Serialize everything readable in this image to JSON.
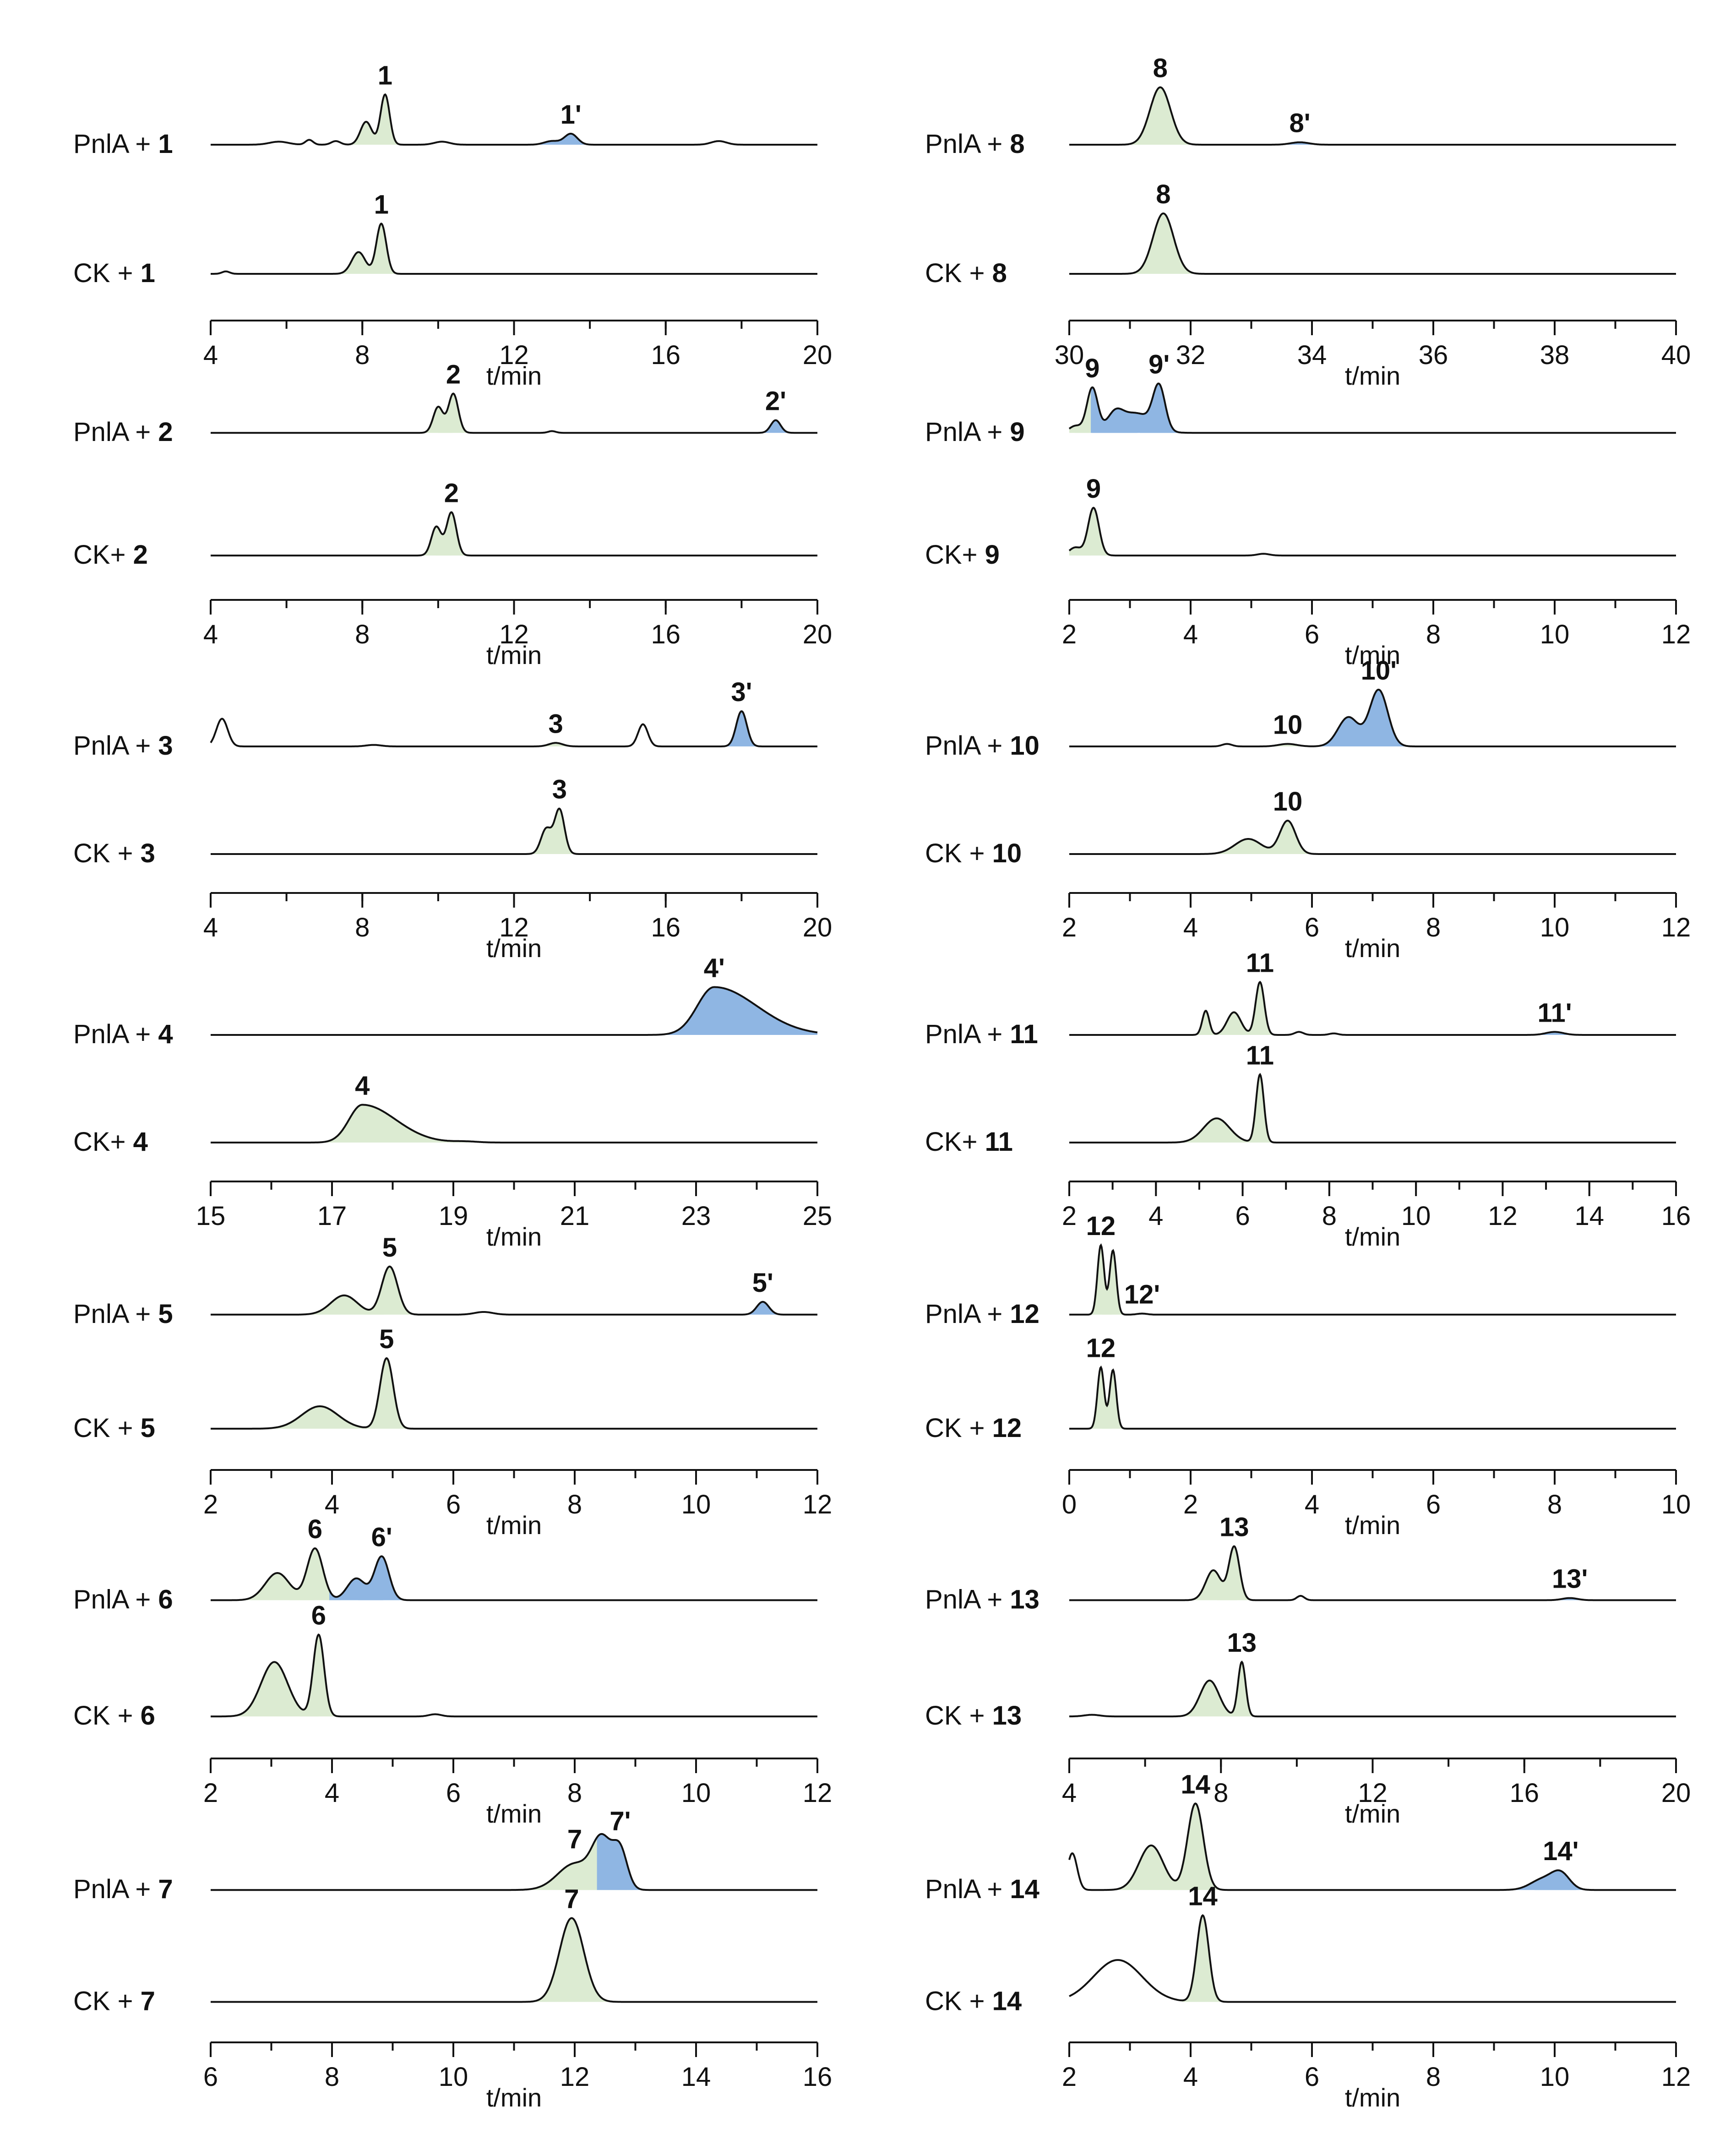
{
  "figure": {
    "title": "",
    "colors": {
      "trace": "#111111",
      "substrate_fill": "#dcebd2",
      "product_fill": "#8fb6e3",
      "axis": "#111111",
      "background": "#ffffff"
    }
  },
  "chart_data": [
    {
      "type": "line",
      "id": "p1",
      "xlabel": "t/min",
      "xlim": [
        4,
        20
      ],
      "ticks": [
        4,
        8,
        12,
        16,
        20
      ],
      "traces": [
        {
          "label_prefix": "PnlA + ",
          "label_bold": "1",
          "peaks": [
            {
              "t": 8.1,
              "h": 0.38,
              "w": 0.15,
              "fill": "substrate"
            },
            {
              "t": 8.6,
              "h": 0.83,
              "w": 0.12,
              "fill": "substrate",
              "label": "1"
            },
            {
              "t": 13.5,
              "h": 0.18,
              "w": 0.17,
              "fill": "product",
              "label": "1'"
            },
            {
              "t": 13.0,
              "h": 0.06,
              "w": 0.2,
              "fill": "product"
            },
            {
              "t": 5.8,
              "h": 0.05,
              "w": 0.25
            },
            {
              "t": 6.6,
              "h": 0.08,
              "w": 0.1
            },
            {
              "t": 7.3,
              "h": 0.06,
              "w": 0.12
            },
            {
              "t": 10.1,
              "h": 0.05,
              "w": 0.2
            },
            {
              "t": 17.4,
              "h": 0.06,
              "w": 0.2
            }
          ]
        },
        {
          "label_prefix": "CK + ",
          "label_bold": "1",
          "peaks": [
            {
              "t": 4.4,
              "h": 0.04,
              "w": 0.1
            },
            {
              "t": 7.9,
              "h": 0.36,
              "w": 0.18,
              "fill": "substrate"
            },
            {
              "t": 8.5,
              "h": 0.83,
              "w": 0.13,
              "fill": "substrate",
              "label": "1"
            }
          ]
        }
      ]
    },
    {
      "type": "line",
      "id": "p8",
      "xlabel": "t/min",
      "xlim": [
        30,
        40
      ],
      "ticks": [
        30,
        32,
        34,
        36,
        38,
        40
      ],
      "traces": [
        {
          "label_prefix": "PnlA + ",
          "label_bold": "8",
          "peaks": [
            {
              "t": 31.5,
              "h": 0.95,
              "w": 0.17,
              "fill": "substrate",
              "label": "8"
            },
            {
              "t": 33.8,
              "h": 0.04,
              "w": 0.15,
              "fill": "product",
              "label": "8'"
            }
          ]
        },
        {
          "label_prefix": "CK + ",
          "label_bold": "8",
          "peaks": [
            {
              "t": 31.55,
              "h": 1.0,
              "w": 0.17,
              "fill": "substrate",
              "label": "8"
            }
          ]
        }
      ]
    },
    {
      "type": "line",
      "id": "p2",
      "xlabel": "t/min",
      "xlim": [
        4,
        20
      ],
      "ticks": [
        4,
        8,
        12,
        16,
        20
      ],
      "traces": [
        {
          "label_prefix": "PnlA + ",
          "label_bold": "2",
          "peaks": [
            {
              "t": 10.0,
              "h": 0.45,
              "w": 0.13,
              "fill": "substrate"
            },
            {
              "t": 10.4,
              "h": 0.68,
              "w": 0.13,
              "fill": "substrate",
              "label": "2"
            },
            {
              "t": 13.0,
              "h": 0.03,
              "w": 0.1
            },
            {
              "t": 18.9,
              "h": 0.22,
              "w": 0.13,
              "fill": "product",
              "label": "2'"
            }
          ]
        },
        {
          "label_prefix": "CK+ ",
          "label_bold": "2",
          "peaks": [
            {
              "t": 9.95,
              "h": 0.5,
              "w": 0.13,
              "fill": "substrate"
            },
            {
              "t": 10.35,
              "h": 0.75,
              "w": 0.13,
              "fill": "substrate",
              "label": "2"
            }
          ]
        }
      ]
    },
    {
      "type": "line",
      "id": "p9",
      "xlabel": "t/min",
      "xlim": [
        2,
        12
      ],
      "ticks": [
        2,
        4,
        6,
        8,
        10,
        12
      ],
      "traces": [
        {
          "label_prefix": "PnlA + ",
          "label_bold": "9",
          "peaks": [
            {
              "t": 2.38,
              "h": 0.78,
              "w": 0.09,
              "fill": "substrate",
              "label": "9"
            },
            {
              "t": 2.1,
              "h": 0.12,
              "w": 0.1,
              "fill": "substrate"
            },
            {
              "t": 2.75,
              "h": 0.28,
              "w": 0.13,
              "fill": "product"
            },
            {
              "t": 3.1,
              "h": 0.34,
              "w": 0.25,
              "fill": "product"
            },
            {
              "t": 3.48,
              "h": 0.75,
              "w": 0.1,
              "fill": "product",
              "label": "9'"
            }
          ]
        },
        {
          "label_prefix": "CK+ ",
          "label_bold": "9",
          "peaks": [
            {
              "t": 2.4,
              "h": 0.83,
              "w": 0.09,
              "fill": "substrate",
              "label": "9"
            },
            {
              "t": 2.1,
              "h": 0.14,
              "w": 0.1,
              "fill": "substrate"
            },
            {
              "t": 5.2,
              "h": 0.03,
              "w": 0.1
            }
          ]
        }
      ]
    },
    {
      "type": "line",
      "id": "p3",
      "xlabel": "t/min",
      "xlim": [
        4,
        20
      ],
      "ticks": [
        4,
        8,
        12,
        16,
        20
      ],
      "traces": [
        {
          "label_prefix": "PnlA + ",
          "label_bold": "3",
          "peaks": [
            {
              "t": 4.3,
              "h": 0.55,
              "w": 0.15
            },
            {
              "t": 8.3,
              "h": 0.03,
              "w": 0.2
            },
            {
              "t": 13.1,
              "h": 0.07,
              "w": 0.18,
              "fill": "substrate",
              "label": "3"
            },
            {
              "t": 15.4,
              "h": 0.44,
              "w": 0.13
            },
            {
              "t": 18.0,
              "h": 0.7,
              "w": 0.14,
              "fill": "product",
              "label": "3'"
            }
          ]
        },
        {
          "label_prefix": "CK + ",
          "label_bold": "3",
          "peaks": [
            {
              "t": 12.85,
              "h": 0.5,
              "w": 0.14,
              "fill": "substrate"
            },
            {
              "t": 13.2,
              "h": 0.88,
              "w": 0.13,
              "fill": "substrate",
              "label": "3"
            }
          ]
        }
      ]
    },
    {
      "type": "line",
      "id": "p10",
      "xlabel": "t/min",
      "xlim": [
        2,
        12
      ],
      "ticks": [
        2,
        4,
        6,
        8,
        10,
        12
      ],
      "traces": [
        {
          "label_prefix": "PnlA + ",
          "label_bold": "10",
          "peaks": [
            {
              "t": 4.6,
              "h": 0.05,
              "w": 0.08
            },
            {
              "t": 5.6,
              "h": 0.05,
              "w": 0.15,
              "fill": "substrate",
              "label": "10"
            },
            {
              "t": 6.6,
              "h": 0.58,
              "w": 0.17,
              "fill": "product"
            },
            {
              "t": 7.1,
              "h": 1.12,
              "w": 0.15,
              "fill": "product",
              "label": "10'"
            }
          ]
        },
        {
          "label_prefix": "CK + ",
          "label_bold": "10",
          "peaks": [
            {
              "t": 4.95,
              "h": 0.3,
              "w": 0.22,
              "fill": "substrate"
            },
            {
              "t": 5.6,
              "h": 0.66,
              "w": 0.13,
              "fill": "substrate",
              "label": "10"
            }
          ]
        }
      ]
    },
    {
      "type": "line",
      "id": "p4",
      "xlabel": "t/min",
      "xlim": [
        15,
        25
      ],
      "ticks": [
        15,
        17,
        19,
        21,
        23,
        25
      ],
      "traces": [
        {
          "label_prefix": "PnlA + ",
          "label_bold": "4",
          "peaks": [
            {
              "t": 23.3,
              "h": 0.95,
              "w": 0.28,
              "tail": 0.7,
              "fill": "product",
              "label": "4'"
            }
          ]
        },
        {
          "label_prefix": "CK+ ",
          "label_bold": "4",
          "peaks": [
            {
              "t": 17.5,
              "h": 0.75,
              "w": 0.22,
              "tail": 0.55,
              "fill": "substrate",
              "label": "4"
            },
            {
              "t": 19.2,
              "h": 0.02,
              "w": 0.2
            }
          ]
        }
      ]
    },
    {
      "type": "line",
      "id": "p11",
      "xlabel": "t/min",
      "xlim": [
        2,
        16
      ],
      "ticks": [
        2,
        4,
        6,
        8,
        10,
        12,
        14,
        16
      ],
      "traces": [
        {
          "label_prefix": "PnlA + ",
          "label_bold": "11",
          "peaks": [
            {
              "t": 5.15,
              "h": 0.48,
              "w": 0.08,
              "fill": "substrate"
            },
            {
              "t": 5.8,
              "h": 0.45,
              "w": 0.16,
              "fill": "substrate"
            },
            {
              "t": 6.4,
              "h": 1.05,
              "w": 0.1,
              "fill": "substrate",
              "label": "11"
            },
            {
              "t": 7.3,
              "h": 0.06,
              "w": 0.1
            },
            {
              "t": 8.1,
              "h": 0.03,
              "w": 0.1
            },
            {
              "t": 13.2,
              "h": 0.06,
              "w": 0.2,
              "fill": "product",
              "label": "11'"
            }
          ]
        },
        {
          "label_prefix": "CK+ ",
          "label_bold": "11",
          "peaks": [
            {
              "t": 5.4,
              "h": 0.48,
              "w": 0.3,
              "fill": "substrate"
            },
            {
              "t": 6.4,
              "h": 1.35,
              "w": 0.09,
              "fill": "substrate",
              "label": "11"
            }
          ]
        }
      ]
    },
    {
      "type": "line",
      "id": "p5",
      "xlabel": "t/min",
      "xlim": [
        2,
        12
      ],
      "ticks": [
        2,
        4,
        6,
        8,
        10,
        12
      ],
      "traces": [
        {
          "label_prefix": "PnlA + ",
          "label_bold": "5",
          "peaks": [
            {
              "t": 4.2,
              "h": 0.36,
              "w": 0.22,
              "fill": "substrate"
            },
            {
              "t": 4.95,
              "h": 0.9,
              "w": 0.13,
              "fill": "substrate",
              "label": "5"
            },
            {
              "t": 6.5,
              "h": 0.05,
              "w": 0.15
            },
            {
              "t": 11.1,
              "h": 0.24,
              "w": 0.1,
              "fill": "product",
              "label": "5'"
            }
          ]
        },
        {
          "label_prefix": "CK + ",
          "label_bold": "5",
          "peaks": [
            {
              "t": 3.8,
              "h": 0.42,
              "w": 0.3,
              "fill": "substrate"
            },
            {
              "t": 4.9,
              "h": 1.32,
              "w": 0.11,
              "fill": "substrate",
              "label": "5"
            }
          ]
        }
      ]
    },
    {
      "type": "line",
      "id": "p12",
      "xlabel": "t/min",
      "xlim": [
        0,
        10
      ],
      "ticks": [
        0,
        2,
        4,
        6,
        8,
        10
      ],
      "traces": [
        {
          "label_prefix": "PnlA + ",
          "label_bold": "12",
          "peaks": [
            {
              "t": 0.52,
              "h": 1.3,
              "w": 0.055,
              "fill": "substrate",
              "label": "12"
            },
            {
              "t": 0.72,
              "h": 1.2,
              "w": 0.055,
              "fill": "substrate"
            },
            {
              "t": 1.2,
              "h": 0.02,
              "w": 0.08,
              "fill": "product",
              "label": "12'"
            }
          ]
        },
        {
          "label_prefix": "CK + ",
          "label_bold": "12",
          "peaks": [
            {
              "t": 0.52,
              "h": 1.15,
              "w": 0.055,
              "fill": "substrate",
              "label": "12"
            },
            {
              "t": 0.72,
              "h": 1.1,
              "w": 0.055,
              "fill": "substrate"
            }
          ]
        }
      ]
    },
    {
      "type": "line",
      "id": "p6",
      "xlabel": "t/min",
      "xlim": [
        2,
        12
      ],
      "ticks": [
        2,
        4,
        6,
        8,
        10,
        12
      ],
      "traces": [
        {
          "label_prefix": "PnlA + ",
          "label_bold": "6",
          "peaks": [
            {
              "t": 3.1,
              "h": 0.5,
              "w": 0.2,
              "fill": "substrate"
            },
            {
              "t": 3.72,
              "h": 0.95,
              "w": 0.13,
              "fill": "substrate",
              "label": "6"
            },
            {
              "t": 4.4,
              "h": 0.4,
              "w": 0.15,
              "fill": "product"
            },
            {
              "t": 4.82,
              "h": 0.8,
              "w": 0.12,
              "fill": "product",
              "label": "6'"
            }
          ]
        },
        {
          "label_prefix": "CK + ",
          "label_bold": "6",
          "peaks": [
            {
              "t": 3.05,
              "h": 1.0,
              "w": 0.22,
              "fill": "substrate"
            },
            {
              "t": 3.78,
              "h": 1.5,
              "w": 0.09,
              "fill": "substrate",
              "label": "6"
            },
            {
              "t": 5.7,
              "h": 0.04,
              "w": 0.1
            }
          ]
        }
      ]
    },
    {
      "type": "line",
      "id": "p13",
      "xlabel": "t/min",
      "xlim": [
        4,
        20
      ],
      "ticks": [
        4,
        8,
        12,
        16,
        20
      ],
      "traces": [
        {
          "label_prefix": "PnlA + ",
          "label_bold": "13",
          "peaks": [
            {
              "t": 7.8,
              "h": 0.55,
              "w": 0.2,
              "fill": "substrate"
            },
            {
              "t": 8.35,
              "h": 0.98,
              "w": 0.14,
              "fill": "substrate",
              "label": "13"
            },
            {
              "t": 10.1,
              "h": 0.08,
              "w": 0.1
            },
            {
              "t": 17.2,
              "h": 0.04,
              "w": 0.2,
              "fill": "product",
              "label": "13'"
            }
          ]
        },
        {
          "label_prefix": "CK + ",
          "label_bold": "13",
          "peaks": [
            {
              "t": 4.6,
              "h": 0.03,
              "w": 0.2
            },
            {
              "t": 7.7,
              "h": 0.66,
              "w": 0.25,
              "fill": "substrate"
            },
            {
              "t": 8.55,
              "h": 1.0,
              "w": 0.1,
              "fill": "substrate",
              "label": "13"
            }
          ]
        }
      ]
    },
    {
      "type": "line",
      "id": "p7",
      "xlabel": "t/min",
      "xlim": [
        6,
        16
      ],
      "ticks": [
        6,
        8,
        10,
        12,
        14,
        16
      ],
      "traces": [
        {
          "label_prefix": "PnlA + ",
          "label_bold": "7",
          "peaks": [
            {
              "t": 12.0,
              "h": 0.5,
              "w": 0.28,
              "fill": "substrate",
              "label": "7"
            },
            {
              "t": 12.45,
              "h": 0.9,
              "w": 0.16,
              "fill": "substrate"
            },
            {
              "t": 12.75,
              "h": 0.72,
              "w": 0.12,
              "fill": "product",
              "label": "7'"
            }
          ]
        },
        {
          "label_prefix": "CK + ",
          "label_bold": "7",
          "peaks": [
            {
              "t": 11.95,
              "h": 1.6,
              "w": 0.2,
              "fill": "substrate",
              "label": "7"
            }
          ]
        }
      ]
    },
    {
      "type": "line",
      "id": "p14",
      "xlabel": "t/min",
      "xlim": [
        2,
        12
      ],
      "ticks": [
        2,
        4,
        6,
        8,
        10,
        12
      ],
      "traces": [
        {
          "label_prefix": "PnlA + ",
          "label_bold": "14",
          "peaks": [
            {
              "t": 2.05,
              "h": 0.7,
              "w": 0.08
            },
            {
              "t": 3.35,
              "h": 0.85,
              "w": 0.2,
              "fill": "substrate"
            },
            {
              "t": 4.08,
              "h": 1.65,
              "w": 0.13,
              "fill": "substrate",
              "label": "14"
            },
            {
              "t": 9.8,
              "h": 0.2,
              "w": 0.2,
              "fill": "product"
            },
            {
              "t": 10.1,
              "h": 0.3,
              "w": 0.15,
              "fill": "product",
              "label": "14'"
            }
          ]
        },
        {
          "label_prefix": "CK + ",
          "label_bold": "14",
          "peaks": [
            {
              "t": 2.8,
              "h": 0.8,
              "w": 0.4
            },
            {
              "t": 4.2,
              "h": 1.65,
              "w": 0.1,
              "fill": "substrate",
              "label": "14"
            }
          ]
        }
      ]
    }
  ]
}
